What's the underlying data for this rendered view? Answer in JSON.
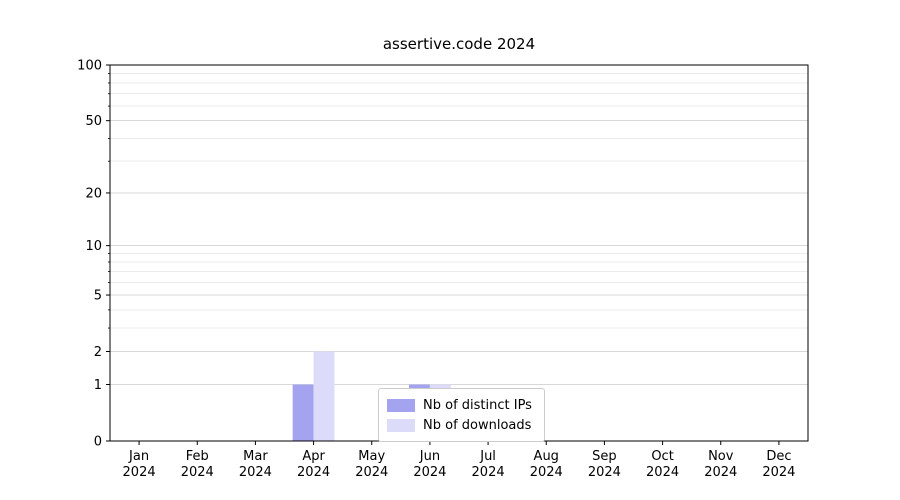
{
  "chart_data": {
    "type": "bar",
    "title": "assertive.code 2024",
    "categories": [
      "Jan",
      "Feb",
      "Mar",
      "Apr",
      "May",
      "Jun",
      "Jul",
      "Aug",
      "Sep",
      "Oct",
      "Nov",
      "Dec"
    ],
    "year": "2024",
    "series": [
      {
        "name": "Nb of distinct IPs",
        "key": "distinct-ips",
        "color": "#a3a3ef",
        "values": [
          0,
          0,
          0,
          1,
          0,
          1,
          0,
          0,
          0,
          0,
          0,
          0
        ]
      },
      {
        "name": "Nb of downloads",
        "key": "downloads",
        "color": "#dcdcfa",
        "values": [
          0,
          0,
          0,
          2,
          0,
          1,
          0,
          0,
          0,
          0,
          0,
          0
        ]
      }
    ],
    "yscale": "log1p",
    "ylim": [
      0,
      100
    ],
    "yticks": [
      0,
      1,
      2,
      5,
      10,
      20,
      50,
      100
    ],
    "minor_yticks": [
      3,
      4,
      6,
      7,
      8,
      9,
      30,
      40,
      60,
      70,
      80,
      90
    ],
    "grid": "horizontal",
    "legend_position": "lower-center-inside"
  },
  "colors": {
    "grid_major": "#d8d8d8",
    "grid_minor": "#ebebeb",
    "axis": "#000000",
    "text": "#000000",
    "background": "#ffffff"
  }
}
